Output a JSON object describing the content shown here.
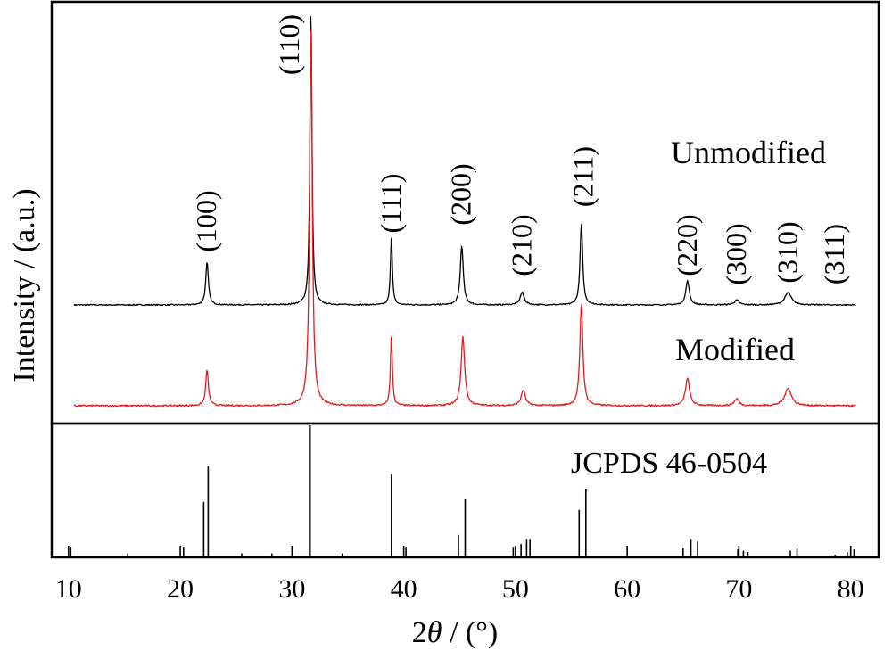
{
  "chart_data": {
    "type": "line",
    "xlabel_prefix": "2",
    "xlabel_symbol": "θ",
    "xlabel_suffix": " / (°)",
    "ylabel": "Intensity / (a.u.)",
    "xlim": [
      8.5,
      82.5
    ],
    "xticks": [
      10,
      20,
      30,
      40,
      50,
      60,
      70,
      80
    ],
    "colors": {
      "unmodified": "#000000",
      "modified": "#e8191e",
      "reference": "#000000"
    },
    "series": [
      {
        "name": "Unmodified",
        "x_range": [
          10.5,
          80.5
        ],
        "baseline": 0.08,
        "noise": 0.006,
        "peaks": [
          {
            "x": 22.4,
            "h": 0.45,
            "w": 0.22
          },
          {
            "x": 31.7,
            "h": 3.1,
            "w": 0.17
          },
          {
            "x": 38.9,
            "h": 0.72,
            "w": 0.16
          },
          {
            "x": 45.2,
            "h": 0.62,
            "w": 0.25
          },
          {
            "x": 50.6,
            "h": 0.13,
            "w": 0.35
          },
          {
            "x": 55.9,
            "h": 0.85,
            "w": 0.22
          },
          {
            "x": 65.4,
            "h": 0.25,
            "w": 0.3
          },
          {
            "x": 69.8,
            "h": 0.05,
            "w": 0.4
          },
          {
            "x": 74.4,
            "h": 0.13,
            "w": 0.55
          }
        ]
      },
      {
        "name": "Modified",
        "x_range": [
          10.5,
          80.5
        ],
        "baseline": 0.07,
        "noise": 0.008,
        "peaks": [
          {
            "x": 22.4,
            "h": 0.37,
            "w": 0.22
          },
          {
            "x": 31.7,
            "h": 3.9,
            "w": 0.22
          },
          {
            "x": 38.9,
            "h": 0.73,
            "w": 0.16
          },
          {
            "x": 45.3,
            "h": 0.7,
            "w": 0.3
          },
          {
            "x": 50.7,
            "h": 0.16,
            "w": 0.35
          },
          {
            "x": 55.9,
            "h": 1.05,
            "w": 0.25
          },
          {
            "x": 65.4,
            "h": 0.28,
            "w": 0.35
          },
          {
            "x": 69.8,
            "h": 0.07,
            "w": 0.4
          },
          {
            "x": 74.4,
            "h": 0.18,
            "w": 0.55
          }
        ]
      }
    ],
    "hkl_labels": [
      {
        "text": "(100)",
        "x": 22.4
      },
      {
        "text": "(110)",
        "x": 29.8
      },
      {
        "text": "(111)",
        "x": 38.9
      },
      {
        "text": "(200)",
        "x": 45.2
      },
      {
        "text": "(210)",
        "x": 50.6
      },
      {
        "text": "(211)",
        "x": 56.1
      },
      {
        "text": "(220)",
        "x": 65.4
      },
      {
        "text": "(300)",
        "x": 69.8
      },
      {
        "text": "(310)",
        "x": 74.4
      },
      {
        "text": "(311)",
        "x": 78.6
      }
    ],
    "reference": {
      "name": "JCPDS 46-0504",
      "lines": [
        {
          "x": 10.2,
          "h": 0.08
        },
        {
          "x": 15.3,
          "h": 0.03
        },
        {
          "x": 20.3,
          "h": 0.08
        },
        {
          "x": 22.1,
          "h": 0.42
        },
        {
          "x": 22.5,
          "h": 0.69
        },
        {
          "x": 25.5,
          "h": 0.03
        },
        {
          "x": 28.2,
          "h": 0.03
        },
        {
          "x": 31.6,
          "h": 1.0
        },
        {
          "x": 34.5,
          "h": 0.03
        },
        {
          "x": 38.9,
          "h": 0.63
        },
        {
          "x": 40.2,
          "h": 0.08
        },
        {
          "x": 44.9,
          "h": 0.17
        },
        {
          "x": 45.5,
          "h": 0.44
        },
        {
          "x": 49.8,
          "h": 0.08
        },
        {
          "x": 50.5,
          "h": 0.1
        },
        {
          "x": 51.0,
          "h": 0.14
        },
        {
          "x": 51.3,
          "h": 0.14
        },
        {
          "x": 55.7,
          "h": 0.36
        },
        {
          "x": 56.3,
          "h": 0.52
        },
        {
          "x": 65.0,
          "h": 0.07
        },
        {
          "x": 65.7,
          "h": 0.14
        },
        {
          "x": 66.3,
          "h": 0.12
        },
        {
          "x": 69.9,
          "h": 0.06
        },
        {
          "x": 70.4,
          "h": 0.05
        },
        {
          "x": 70.8,
          "h": 0.04
        },
        {
          "x": 74.6,
          "h": 0.05
        },
        {
          "x": 75.2,
          "h": 0.07
        },
        {
          "x": 78.6,
          "h": 0.02
        },
        {
          "x": 79.7,
          "h": 0.04
        },
        {
          "x": 80.3,
          "h": 0.06
        }
      ]
    }
  }
}
